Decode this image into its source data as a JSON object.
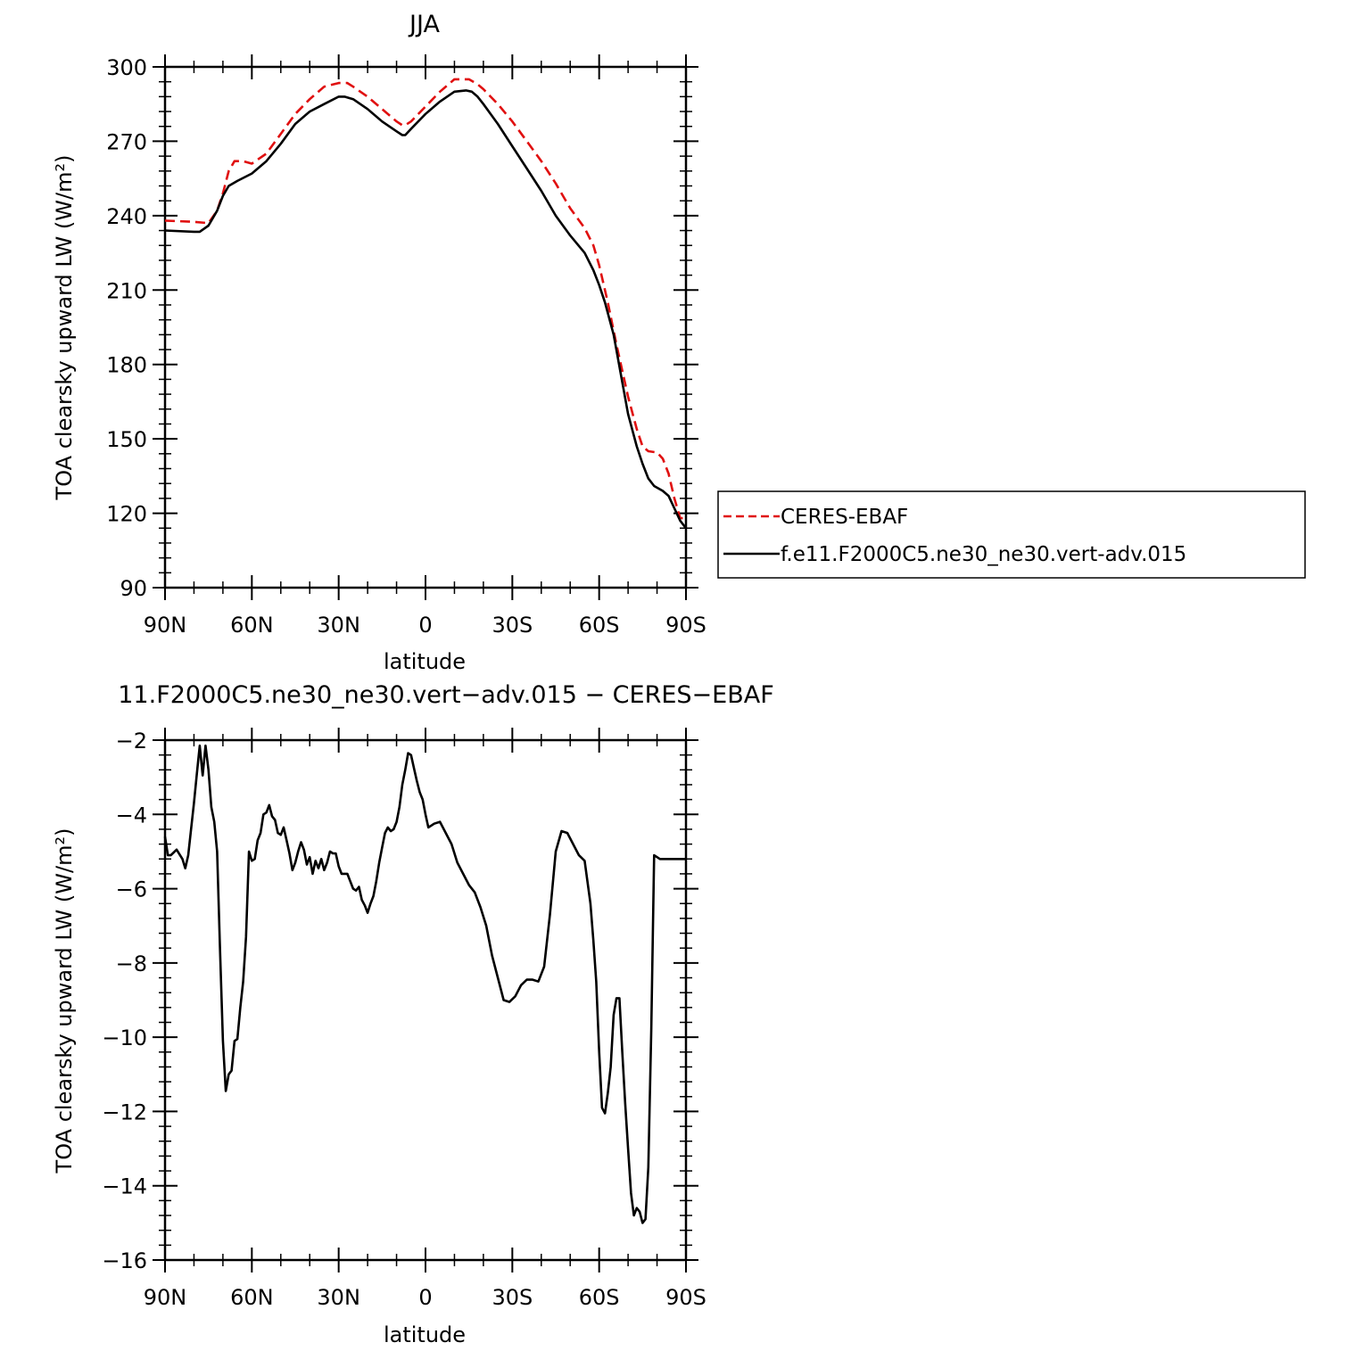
{
  "chart_data": [
    {
      "type": "line",
      "title": "JJA",
      "xlabel": "latitude",
      "ylabel": "TOA clearsky upward LW (W/m²)",
      "ylim": [
        90,
        300
      ],
      "yticks": [
        "90",
        "120",
        "150",
        "180",
        "210",
        "240",
        "270",
        "300"
      ],
      "xlim": [
        90,
        -90
      ],
      "xticks": [
        "90N",
        "60N",
        "30N",
        "0",
        "30S",
        "60S",
        "90S"
      ],
      "legend_position": "right",
      "series": [
        {
          "name": "CERES-EBAF",
          "color": "#e01010",
          "dash": "dashed",
          "x": [
            90,
            80,
            75,
            72,
            70,
            68,
            66,
            63,
            60,
            55,
            50,
            45,
            40,
            35,
            30,
            27,
            25,
            20,
            15,
            10,
            8,
            7,
            5,
            0,
            -5,
            -10,
            -15,
            -18,
            -20,
            -25,
            -30,
            -35,
            -40,
            -45,
            -50,
            -55,
            -58,
            -60,
            -63,
            -66,
            -70,
            -73,
            -75,
            -77,
            -80,
            -82,
            -84,
            -86,
            -88,
            -90
          ],
          "y": [
            238,
            237.5,
            237,
            242,
            249,
            258,
            262,
            262,
            261,
            265,
            273,
            281,
            287,
            292,
            293.5,
            293.5,
            292,
            288,
            283,
            278,
            276.5,
            276.5,
            278,
            284,
            290,
            295,
            295,
            293,
            291,
            285,
            278,
            270,
            262,
            253,
            243,
            235,
            228,
            220,
            205,
            188,
            167,
            154,
            147,
            145,
            144.5,
            142,
            136,
            126,
            118,
            118
          ]
        },
        {
          "name": "f.e11.F2000C5.ne30_ne30.vert-adv.015",
          "color": "#000000",
          "dash": "solid",
          "x": [
            90,
            80,
            78,
            75,
            72,
            70,
            68,
            65,
            60,
            55,
            50,
            45,
            40,
            35,
            30,
            28,
            25,
            20,
            15,
            10,
            8,
            7,
            5,
            0,
            -5,
            -10,
            -14,
            -16,
            -18,
            -20,
            -25,
            -30,
            -35,
            -40,
            -45,
            -50,
            -55,
            -58,
            -60,
            -62,
            -65,
            -70,
            -73,
            -75,
            -77,
            -79,
            -82,
            -84,
            -86,
            -88,
            -90
          ],
          "y": [
            234,
            233.5,
            233.5,
            236,
            242,
            248,
            252,
            254,
            257,
            262,
            269,
            277,
            282,
            285,
            288,
            288,
            287,
            283,
            278,
            274,
            272.5,
            272.5,
            275,
            281,
            286,
            290,
            290.5,
            290,
            288,
            285,
            277,
            268,
            259,
            250,
            240,
            232,
            225,
            218,
            212,
            205,
            192,
            160,
            147,
            140,
            134,
            131,
            129,
            127,
            122,
            117,
            114
          ]
        }
      ]
    },
    {
      "type": "line",
      "title": "11.F2000C5.ne30_ne30.vert−adv.015 − CERES−EBAF",
      "xlabel": "latitude",
      "ylabel": "TOA clearsky upward LW (W/m²)",
      "ylim": [
        -16,
        -2
      ],
      "yticks": [
        "−16",
        "−14",
        "−12",
        "−10",
        "−8",
        "−6",
        "−4",
        "−2"
      ],
      "xlim": [
        90,
        -90
      ],
      "xticks": [
        "90N",
        "60N",
        "30N",
        "0",
        "30S",
        "60S",
        "90S"
      ],
      "series": [
        {
          "name": "",
          "color": "#000000",
          "dash": "solid",
          "x": [
            90,
            89,
            88,
            86,
            84,
            83,
            82,
            81,
            80,
            79,
            78,
            77,
            76,
            75,
            74,
            73,
            72,
            71,
            70,
            69,
            68,
            67,
            66,
            65,
            64,
            63,
            62,
            61,
            60,
            59,
            58,
            57,
            56,
            55,
            54,
            53,
            52,
            51,
            50,
            49,
            48,
            47,
            46,
            45,
            44,
            43,
            42,
            41,
            40,
            39,
            38,
            37,
            36,
            35,
            34,
            33,
            32,
            31,
            30,
            29,
            28,
            27,
            26,
            25,
            24,
            23,
            22,
            21,
            20,
            19,
            18,
            17,
            16,
            15,
            14,
            13,
            12,
            11,
            10,
            9,
            8,
            7,
            6,
            5,
            4,
            3,
            2,
            1,
            0,
            -1,
            -2,
            -3,
            -5,
            -7,
            -9,
            -11,
            -13,
            -15,
            -17,
            -19,
            -21,
            -23,
            -25,
            -27,
            -29,
            -31,
            -33,
            -35,
            -37,
            -39,
            -41,
            -43,
            -45,
            -47,
            -49,
            -51,
            -53,
            -55,
            -57,
            -58,
            -59,
            -60,
            -61,
            -62,
            -63,
            -64,
            -65,
            -66,
            -67,
            -68,
            -69,
            -70,
            -71,
            -72,
            -73,
            -74,
            -75,
            -76,
            -77,
            -78,
            -79,
            -80,
            -81,
            -82,
            -83,
            -84,
            -85,
            -86,
            -87,
            -88,
            -89,
            -90
          ],
          "y": [
            -4.6,
            -5.1,
            -5.1,
            -4.95,
            -5.2,
            -5.45,
            -5.1,
            -4.4,
            -3.7,
            -2.9,
            -2.15,
            -2.95,
            -2.15,
            -2.8,
            -3.8,
            -4.2,
            -5.0,
            -7.6,
            -10.1,
            -11.45,
            -11,
            -10.9,
            -10.1,
            -10.05,
            -9.2,
            -8.5,
            -7.3,
            -5.0,
            -5.25,
            -5.2,
            -4.7,
            -4.5,
            -4.0,
            -3.95,
            -3.75,
            -4.05,
            -4.15,
            -4.5,
            -4.55,
            -4.35,
            -4.7,
            -5.05,
            -5.5,
            -5.3,
            -5.0,
            -4.75,
            -4.95,
            -5.35,
            -5.15,
            -5.6,
            -5.25,
            -5.45,
            -5.2,
            -5.5,
            -5.3,
            -5.0,
            -5.05,
            -5.05,
            -5.4,
            -5.6,
            -5.6,
            -5.6,
            -5.8,
            -6.0,
            -6.05,
            -5.95,
            -6.3,
            -6.45,
            -6.65,
            -6.4,
            -6.2,
            -5.8,
            -5.3,
            -4.9,
            -4.5,
            -4.35,
            -4.45,
            -4.4,
            -4.2,
            -3.8,
            -3.2,
            -2.8,
            -2.35,
            -2.4,
            -2.75,
            -3.1,
            -3.4,
            -3.6,
            -4.0,
            -4.35,
            -4.3,
            -4.25,
            -4.2,
            -4.5,
            -4.8,
            -5.3,
            -5.6,
            -5.9,
            -6.1,
            -6.5,
            -7.0,
            -7.8,
            -8.4,
            -9.0,
            -9.05,
            -8.9,
            -8.6,
            -8.45,
            -8.45,
            -8.5,
            -8.1,
            -6.7,
            -5.0,
            -4.45,
            -4.5,
            -4.8,
            -5.1,
            -5.25,
            -6.4,
            -7.4,
            -8.5,
            -10.4,
            -11.9,
            -12.05,
            -11.5,
            -10.8,
            -9.4,
            -8.95,
            -8.95,
            -10.4,
            -11.8,
            -13.0,
            -14.2,
            -14.8,
            -14.6,
            -14.7,
            -15,
            -14.9,
            -13.5,
            -9.8,
            -5.1,
            -5.15,
            -5.2,
            -5.2,
            -5.2,
            -5.2,
            -5.2,
            -5.2,
            -5.2,
            -5.2,
            -5.2,
            -5.2
          ]
        }
      ]
    }
  ]
}
